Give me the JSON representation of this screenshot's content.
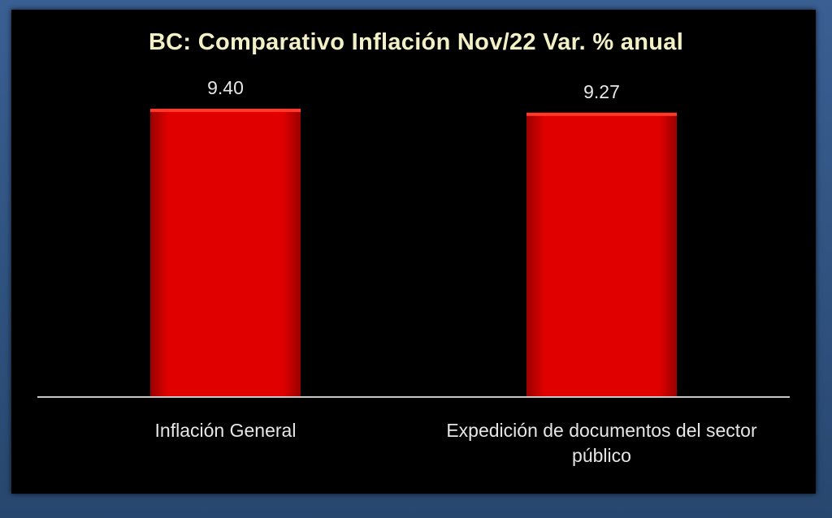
{
  "chart_data": {
    "type": "bar",
    "title": "BC: Comparativo  Inflación Nov/22 Var. % anual",
    "categories": [
      [
        "Inflación General"
      ],
      [
        "Expedición de documentos del sector",
        "público"
      ]
    ],
    "values": [
      9.4,
      9.27
    ],
    "value_labels": [
      "9.40",
      "9.27"
    ],
    "xlabel": "",
    "ylabel": "",
    "ylim": [
      0,
      10.3
    ],
    "grid": false,
    "legend": "none",
    "colors": {
      "bar": "#e10000",
      "bar_highlight": "#ff3a2a",
      "bar_shadow": "#9a0000",
      "background": "#000000",
      "axis": "#c8c8c8",
      "label_text": "#e6e6e6",
      "title_text": "#f3f0c6"
    }
  }
}
